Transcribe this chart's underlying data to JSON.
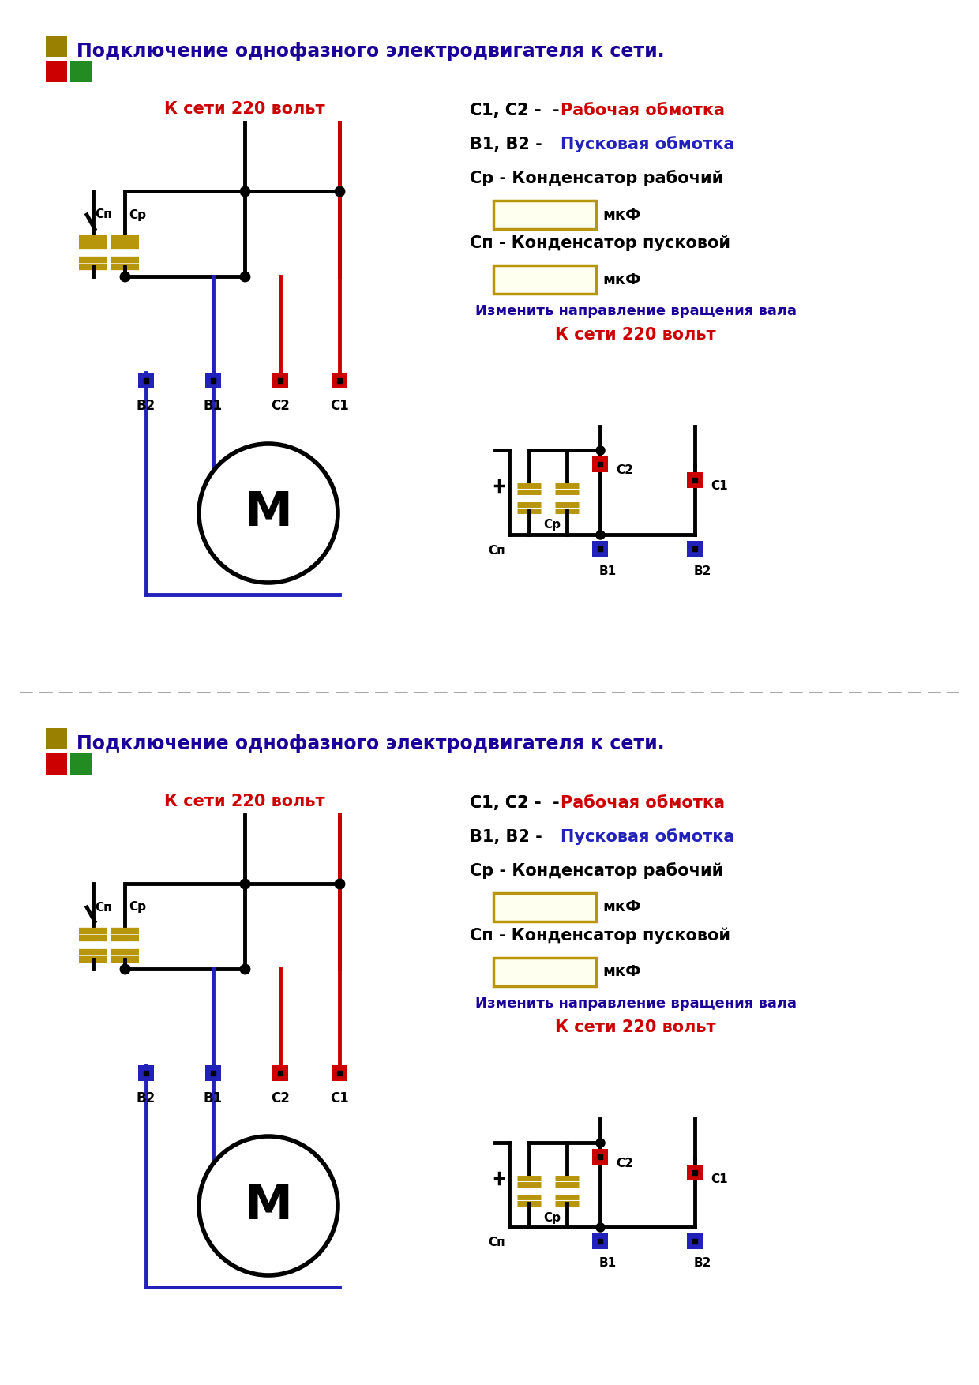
{
  "title": "Подключение однофазного электродвигателя к сети.",
  "subtitle_red": "К сети 220 вольт",
  "leg1_black": "С1, С2 - ",
  "leg1_red": "Рабочая обмотка",
  "leg2_black": "В1, В2 - ",
  "leg2_blue": "Пусковая обмотка",
  "leg3": "Ср - Конденсатор рабочий",
  "mkf": "мкФ",
  "leg4": "Сп - Конденсатор пусковой",
  "rev1": "Изменить направление вращения вала",
  "rev2": "К сети 220 вольт",
  "lbl_cp": "Сп",
  "lbl_cr": "Ср",
  "lbl_B2": "В2",
  "lbl_B1": "В1",
  "lbl_C2": "С2",
  "lbl_C1": "С1",
  "color_black": "#000000",
  "color_red": "#cc0000",
  "color_blue": "#2222bb",
  "color_navy": "#1a0099",
  "color_gold": "#b8960c",
  "color_cap_fill": "#fffff0",
  "color_bg": "#ffffff",
  "color_title": "#1a0099",
  "color_sq_gold": "#9a8000",
  "color_sq_red": "#cc0000",
  "color_sq_green": "#228B22"
}
